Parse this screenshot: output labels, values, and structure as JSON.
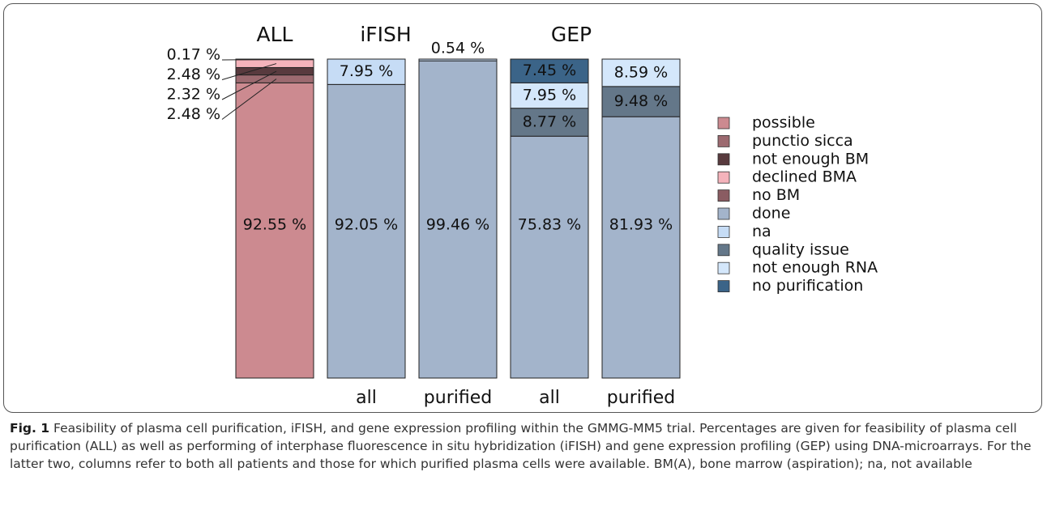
{
  "chart_data": {
    "type": "stacked-bar",
    "groups": [
      "ALL",
      "iFISH",
      "GEP"
    ],
    "categories": [
      null,
      "all",
      "purified",
      "all",
      "purified"
    ],
    "ylim": [
      0,
      100
    ],
    "series": [
      {
        "name": "possible",
        "color": "#cc8a90",
        "values": [
          92.55,
          null,
          null,
          null,
          null
        ],
        "value_labels": [
          "92.55 %",
          null,
          null,
          null,
          null
        ]
      },
      {
        "name": "punctio sicca",
        "color": "#9c6a70",
        "values": [
          2.48,
          null,
          null,
          null,
          null
        ],
        "value_labels": [
          "2.48 %",
          null,
          null,
          null,
          null
        ]
      },
      {
        "name": "not enough BM",
        "color": "#583a3e",
        "values": [
          2.32,
          null,
          null,
          null,
          null
        ],
        "value_labels": [
          "2.32 %",
          null,
          null,
          null,
          null
        ]
      },
      {
        "name": "declined BMA",
        "color": "#f4b3bb",
        "values": [
          2.48,
          null,
          null,
          null,
          null
        ],
        "value_labels": [
          "2.48 %",
          null,
          null,
          null,
          null
        ]
      },
      {
        "name": "no BM",
        "color": "#8a5c62",
        "values": [
          0.17,
          null,
          null,
          null,
          null
        ],
        "value_labels": [
          "0.17 %",
          null,
          null,
          null,
          null
        ]
      },
      {
        "name": "done",
        "color": "#a3b4cb",
        "values": [
          null,
          92.05,
          99.46,
          75.83,
          81.93
        ],
        "value_labels": [
          null,
          "92.05 %",
          "99.46 %",
          "75.83 %",
          "81.93 %"
        ]
      },
      {
        "name": "na",
        "color": "#c6dcf5",
        "values": [
          null,
          7.95,
          0.54,
          null,
          null
        ],
        "value_labels": [
          null,
          "7.95 %",
          "0.54 %",
          null,
          null
        ]
      },
      {
        "name": "quality issue",
        "color": "#647789",
        "values": [
          null,
          null,
          null,
          8.77,
          9.48
        ],
        "value_labels": [
          null,
          null,
          null,
          "8.77 %",
          "9.48 %"
        ]
      },
      {
        "name": "not enough RNA",
        "color": "#d4e7fb",
        "values": [
          null,
          null,
          null,
          7.95,
          8.59
        ],
        "value_labels": [
          null,
          null,
          null,
          "7.95 %",
          "8.59 %"
        ]
      },
      {
        "name": "no purification",
        "color": "#3b6488",
        "values": [
          null,
          null,
          null,
          7.45,
          null
        ],
        "value_labels": [
          null,
          null,
          null,
          "7.45 %",
          null
        ]
      }
    ]
  },
  "caption": {
    "label": "Fig. 1",
    "text": "Feasibility of plasma cell purification, iFISH, and gene expression profiling within the GMMG-MM5 trial. Percentages are given for feasibility of plasma cell purification (ALL) as well as performing of interphase fluorescence in situ hybridization (iFISH) and gene expression profiling (GEP) using DNA-microarrays. For the latter two, columns refer to both all patients and those for which purified plasma cells were available. BM(A), bone marrow (aspiration); na, not available"
  }
}
